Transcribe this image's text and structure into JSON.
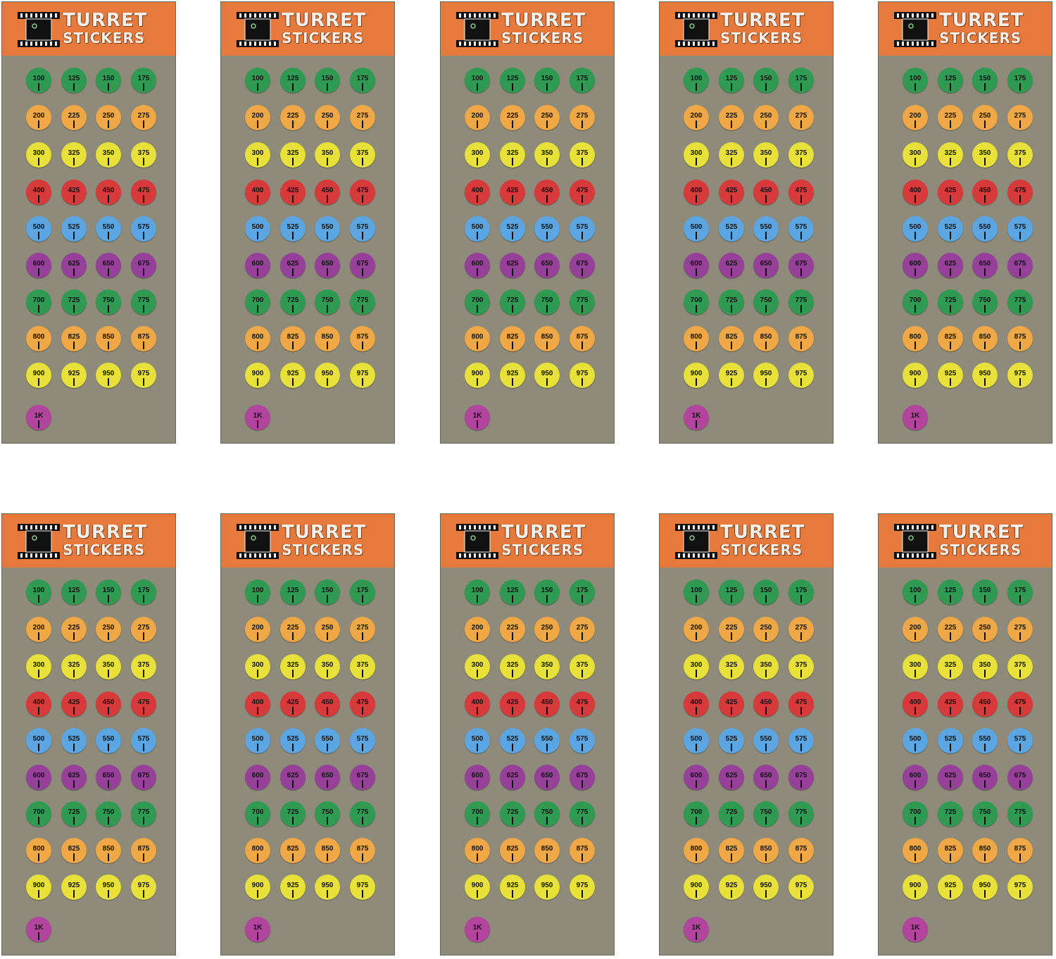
{
  "title_line1": "TURRET",
  "title_line2": "STICKERS",
  "sheet_count": 10,
  "colors": {
    "header": "#e57a3c",
    "sheet_background": "#8e8b7a",
    "green": "#2f9a52",
    "orange": "#f0a745",
    "yellow": "#e8e13a",
    "red": "#d8393a",
    "blue": "#5ba6e2",
    "purple": "#96409a",
    "magenta": "#b2449e"
  },
  "rows": [
    {
      "color": "green",
      "labels": [
        "100",
        "125",
        "150",
        "175"
      ]
    },
    {
      "color": "orange",
      "labels": [
        "200",
        "225",
        "250",
        "275"
      ]
    },
    {
      "color": "yellow",
      "labels": [
        "300",
        "325",
        "350",
        "375"
      ]
    },
    {
      "color": "red",
      "labels": [
        "400",
        "425",
        "450",
        "475"
      ]
    },
    {
      "color": "blue",
      "labels": [
        "500",
        "525",
        "550",
        "575"
      ]
    },
    {
      "color": "purple",
      "labels": [
        "600",
        "625",
        "650",
        "675"
      ]
    },
    {
      "color": "green",
      "labels": [
        "700",
        "725",
        "750",
        "775"
      ]
    },
    {
      "color": "orange",
      "labels": [
        "800",
        "825",
        "850",
        "875"
      ]
    },
    {
      "color": "yellow",
      "labels": [
        "900",
        "925",
        "950",
        "975"
      ]
    },
    {
      "color": "magenta",
      "labels": [
        "1K"
      ]
    }
  ]
}
